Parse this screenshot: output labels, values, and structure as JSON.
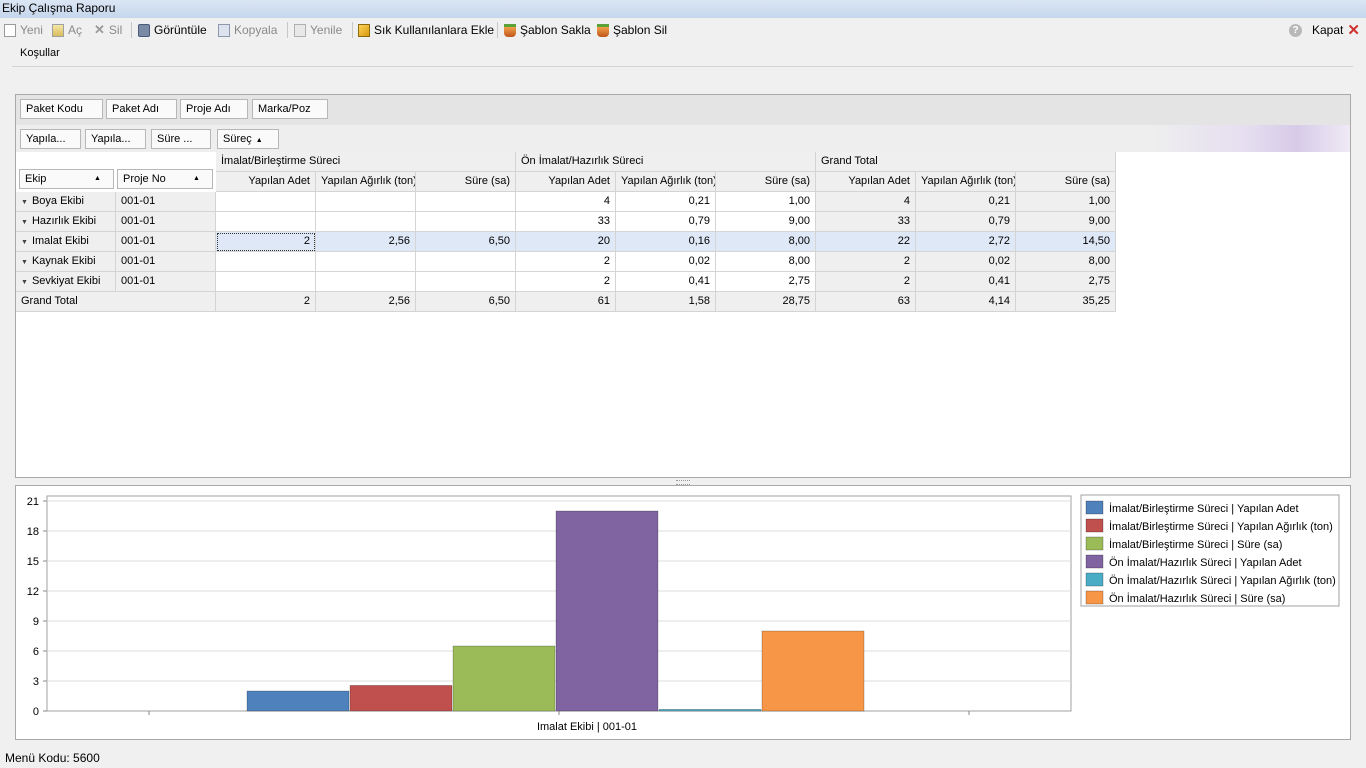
{
  "window": {
    "title": "Ekip Çalışma Raporu"
  },
  "toolbar": {
    "new_label": "Yeni",
    "open_label": "Aç",
    "delete_label": "Sil",
    "view_label": "Görüntüle",
    "copy_label": "Kopyala",
    "refresh_label": "Yenile",
    "favorites_label": "Sık Kullanılanlara Ekle",
    "save_template_label": "Şablon Sakla",
    "delete_template_label": "Şablon Sil",
    "close_label": "Kapat"
  },
  "conditions": {
    "label": "Koşullar"
  },
  "pivot": {
    "filter_fields": [
      "Paket Kodu",
      "Paket Adı",
      "Proje Adı",
      "Marka/Poz"
    ],
    "data_fields": [
      "Yapıla...",
      "Yapıla...",
      "Süre ..."
    ],
    "column_field": "Süreç",
    "row_fields": [
      "Ekip",
      "Proje No"
    ],
    "column_groups": [
      "İmalat/Birleştirme Süreci",
      "Ön İmalat/Hazırlık Süreci",
      "Grand Total"
    ],
    "measures": [
      "Yapılan Adet",
      "Yapılan Ağırlık (ton)",
      "Süre (sa)"
    ],
    "rows": [
      {
        "ekip": "Boya Ekibi",
        "proje": "001-01",
        "values": [
          "",
          "",
          "",
          "4",
          "0,21",
          "1,00",
          "4",
          "0,21",
          "1,00"
        ]
      },
      {
        "ekip": "Hazırlık Ekibi",
        "proje": "001-01",
        "values": [
          "",
          "",
          "",
          "33",
          "0,79",
          "9,00",
          "33",
          "0,79",
          "9,00"
        ]
      },
      {
        "ekip": "Imalat Ekibi",
        "proje": "001-01",
        "values": [
          "2",
          "2,56",
          "6,50",
          "20",
          "0,16",
          "8,00",
          "22",
          "2,72",
          "14,50"
        ]
      },
      {
        "ekip": "Kaynak Ekibi",
        "proje": "001-01",
        "values": [
          "",
          "",
          "",
          "2",
          "0,02",
          "8,00",
          "2",
          "0,02",
          "8,00"
        ]
      },
      {
        "ekip": "Sevkiyat Ekibi",
        "proje": "001-01",
        "values": [
          "",
          "",
          "",
          "2",
          "0,41",
          "2,75",
          "2",
          "0,41",
          "2,75"
        ]
      }
    ],
    "grand_total": {
      "label": "Grand Total",
      "values": [
        "2",
        "2,56",
        "6,50",
        "61",
        "1,58",
        "28,75",
        "63",
        "4,14",
        "35,25"
      ]
    },
    "selected_row": 2
  },
  "chart_data": {
    "type": "bar",
    "categories": [
      "Imalat Ekibi | 001-01"
    ],
    "series": [
      {
        "name": "İmalat/Birleştirme Süreci | Yapılan Adet",
        "values": [
          2
        ],
        "color": "#4f81bd"
      },
      {
        "name": "İmalat/Birleştirme Süreci | Yapılan Ağırlık (ton)",
        "values": [
          2.56
        ],
        "color": "#c0504d"
      },
      {
        "name": "İmalat/Birleştirme Süreci | Süre (sa)",
        "values": [
          6.5
        ],
        "color": "#9bbb59"
      },
      {
        "name": "Ön İmalat/Hazırlık Süreci | Yapılan Adet",
        "values": [
          20
        ],
        "color": "#8064a2"
      },
      {
        "name": "Ön İmalat/Hazırlık Süreci | Yapılan Ağırlık (ton)",
        "values": [
          0.16
        ],
        "color": "#4bacc6"
      },
      {
        "name": "Ön İmalat/Hazırlık Süreci | Süre (sa)",
        "values": [
          8
        ],
        "color": "#f79646"
      }
    ],
    "ylim": [
      0,
      21.5
    ],
    "yticks": [
      0,
      3,
      6,
      9,
      12,
      15,
      18,
      21
    ],
    "grid": true,
    "legend": "right"
  },
  "status": {
    "menu_code": "Menü Kodu: 5600"
  }
}
